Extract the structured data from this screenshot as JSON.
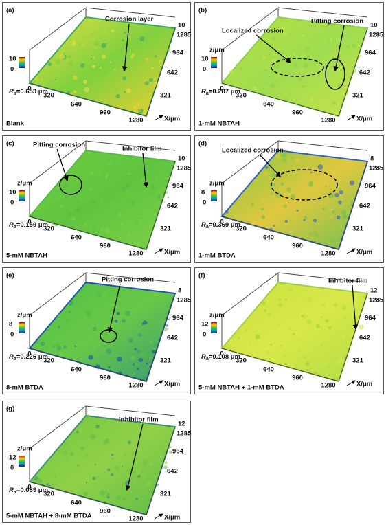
{
  "axes": {
    "x_ticks": [
      "0",
      "320",
      "640",
      "960",
      "1280"
    ],
    "x_label": "X/μm",
    "ra_symbol": "R",
    "ra_sub": "a"
  },
  "panels": [
    {
      "label": "(a)",
      "annotations": [
        "Corrosion layer"
      ],
      "z_ticks": [
        "10",
        "0"
      ],
      "y_ticks": [
        "10",
        "1285",
        "964",
        "642",
        "321"
      ],
      "ra": "=0.653 μm",
      "name": "Blank"
    },
    {
      "label": "(b)",
      "annotations": [
        "Localized corrosion",
        "Pitting corrosion"
      ],
      "z_label": "z/μm",
      "z_ticks": [
        "10",
        "0"
      ],
      "y_ticks": [
        "10",
        "1285",
        "964",
        "642",
        "321"
      ],
      "ra": "=0.287 μm",
      "name": "1-mM NBTAH"
    },
    {
      "label": "(c)",
      "annotations": [
        "Pitting corrosion",
        "Inhibitor film"
      ],
      "z_label": "z/μm",
      "z_ticks": [
        "10",
        "0"
      ],
      "y_ticks": [
        "10",
        "1285",
        "964",
        "642",
        "321"
      ],
      "ra": "=0.159 μm",
      "name": "5-mM NBTAH"
    },
    {
      "label": "(d)",
      "annotations": [
        "Localized corrosion"
      ],
      "z_label": "z/μm",
      "z_ticks": [
        "8",
        "0"
      ],
      "y_ticks": [
        "8",
        "1285",
        "964",
        "642",
        "321"
      ],
      "ra": "=0.369 μm",
      "name": "1-mM BTDA"
    },
    {
      "label": "(e)",
      "annotations": [
        "Pitting corrosion"
      ],
      "z_label": "z/μm",
      "z_ticks": [
        "8",
        "0"
      ],
      "y_ticks": [
        "8",
        "1285",
        "964",
        "642",
        "321"
      ],
      "ra": "=0.226 μm",
      "name": "8-mM BTDA"
    },
    {
      "label": "(f)",
      "annotations": [
        "Inhibitor film"
      ],
      "z_label": "z/μm",
      "z_ticks": [
        "12",
        "0"
      ],
      "y_ticks": [
        "12",
        "1285",
        "964",
        "642",
        "321"
      ],
      "ra": "=0.108 μm",
      "name": "5-mM NBTAH + 1-mM BTDA"
    },
    {
      "label": "(g)",
      "annotations": [
        "Inhibitor film"
      ],
      "z_label": "z/μm",
      "z_ticks": [
        "12",
        "0"
      ],
      "y_ticks": [
        "12",
        "1285",
        "964",
        "642",
        "321"
      ],
      "ra": "=0.089 μm",
      "name": "5-mM NBTAH + 8-mM BTDA"
    }
  ]
}
